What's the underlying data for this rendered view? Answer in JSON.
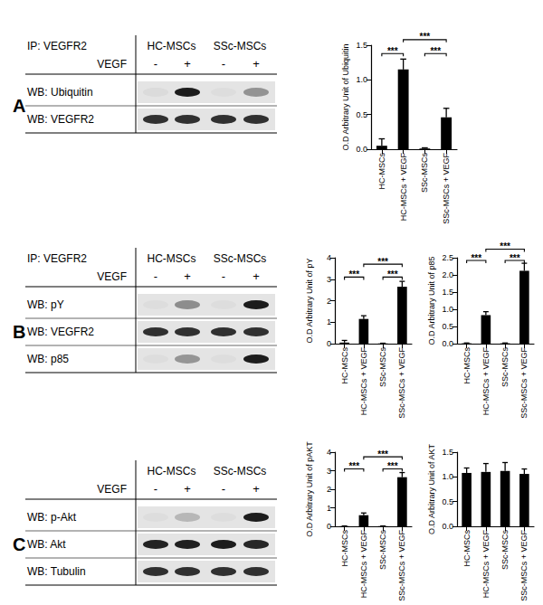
{
  "panels": [
    {
      "letter": "A",
      "ip": "IP: VEGFR2",
      "groups": [
        "HC-MSCs",
        "SSc-MSCs"
      ],
      "treatment": "VEGF",
      "lanes": [
        "-",
        "+",
        "-",
        "+"
      ],
      "rows": [
        "WB: Ubiquitin",
        "WB: VEGFR2"
      ]
    },
    {
      "letter": "B",
      "ip": "IP: VEGFR2",
      "groups": [
        "HC-MSCs",
        "SSc-MSCs"
      ],
      "treatment": "VEGF",
      "lanes": [
        "-",
        "+",
        "-",
        "+"
      ],
      "rows": [
        "WB: pY",
        "WB: VEGFR2",
        "WB: p85"
      ]
    },
    {
      "letter": "C",
      "groups": [
        "HC-MSCs",
        "SSc-MSCs"
      ],
      "treatment": "VEGF",
      "lanes": [
        "-",
        "+",
        "-",
        "+"
      ],
      "rows": [
        "WB: p-Akt",
        "WB: Akt",
        "WB: Tubulin"
      ]
    }
  ],
  "chart_data": [
    {
      "type": "bar",
      "ylabel": "O.D Arbitrary Unit of Ubiquitin",
      "color": "#000000",
      "categories": [
        "HC-MSCs",
        "HC-MSCs + VEGF",
        "SSc-MSCs",
        "SSc-MSCs + VEGF"
      ],
      "values": [
        0.05,
        1.15,
        0.01,
        0.46
      ],
      "errors": [
        0.1,
        0.15,
        0.01,
        0.13
      ],
      "ylim": [
        0,
        1.5
      ],
      "yticks": [
        {
          "value": 0,
          "label": "0.0"
        },
        {
          "value": 0.5,
          "label": "0.5"
        },
        {
          "value": 1,
          "label": "1.0"
        },
        {
          "value": 1.5,
          "label": "1.5"
        }
      ],
      "grid": false,
      "significance": [
        {
          "from": 0,
          "to": 1,
          "y": 1.38,
          "label": "***"
        },
        {
          "from": 2,
          "to": 3,
          "y": 1.38,
          "label": "***"
        },
        {
          "from": 1,
          "to": 3,
          "y": 1.58,
          "label": "***"
        }
      ]
    },
    {
      "type": "bar",
      "ylabel": "O.D Arbitrary Unit of pY",
      "color": "#000000",
      "categories": [
        "HC-MSCs",
        "HC-MSCs + VEGF",
        "SSc-MSCs",
        "SSc-MSCs + VEGF"
      ],
      "values": [
        0.05,
        1.15,
        0.01,
        2.65
      ],
      "errors": [
        0.1,
        0.15,
        0.01,
        0.25
      ],
      "ylim": [
        0,
        4
      ],
      "yticks": [
        0,
        1,
        2,
        3,
        4
      ],
      "grid": false,
      "significance": [
        {
          "from": 0,
          "to": 1,
          "y": 3.1,
          "label": "***"
        },
        {
          "from": 2,
          "to": 3,
          "y": 3.1,
          "label": "***"
        },
        {
          "from": 1,
          "to": 3,
          "y": 3.7,
          "label": "***"
        }
      ]
    },
    {
      "type": "bar",
      "ylabel": "O.D Arbitrary Unit of p85",
      "color": "#000000",
      "categories": [
        "HC-MSCs",
        "HC-MSCs + VEGF",
        "SSc-MSCs",
        "SSc-MSCs + VEGF"
      ],
      "values": [
        0.01,
        0.83,
        0.01,
        2.12
      ],
      "errors": [
        0.01,
        0.1,
        0.01,
        0.22
      ],
      "ylim": [
        0,
        2.5
      ],
      "yticks": [
        {
          "value": 0,
          "label": "0.0"
        },
        {
          "value": 0.5,
          "label": "0.5"
        },
        {
          "value": 1,
          "label": "1.0"
        },
        {
          "value": 1.5,
          "label": "1.5"
        },
        {
          "value": 2,
          "label": "2.0"
        },
        {
          "value": 2.5,
          "label": "2.5"
        }
      ],
      "grid": false,
      "significance": [
        {
          "from": 0,
          "to": 1,
          "y": 2.42,
          "label": "***"
        },
        {
          "from": 2,
          "to": 3,
          "y": 2.42,
          "label": "***"
        },
        {
          "from": 1,
          "to": 3,
          "y": 2.75,
          "label": "***"
        }
      ]
    },
    {
      "type": "bar",
      "ylabel": "O.D Arbitrary Unit of pAKT",
      "color": "#000000",
      "categories": [
        "HC-MSCs",
        "HC-MSCs + VEGF",
        "SSc-MSCs",
        "SSc-MSCs + VEGF"
      ],
      "values": [
        0.01,
        0.6,
        0.01,
        2.65
      ],
      "errors": [
        0.01,
        0.12,
        0.01,
        0.25
      ],
      "ylim": [
        0,
        4
      ],
      "yticks": [
        0,
        1,
        2,
        3,
        4
      ],
      "grid": false,
      "significance": [
        {
          "from": 0,
          "to": 1,
          "y": 3.1,
          "label": "***"
        },
        {
          "from": 2,
          "to": 3,
          "y": 3.1,
          "label": "***"
        },
        {
          "from": 1,
          "to": 3,
          "y": 3.75,
          "label": "***"
        }
      ]
    },
    {
      "type": "bar",
      "ylabel": "O.D Arbitrary Unit of AKT",
      "color": "#000000",
      "categories": [
        "HC-MSCs",
        "HC-MSCs + VEGF",
        "SSc-MSCs",
        "SSc-MSCs + VEGF"
      ],
      "values": [
        1.08,
        1.1,
        1.12,
        1.06
      ],
      "errors": [
        0.1,
        0.17,
        0.17,
        0.1
      ],
      "ylim": [
        0,
        1.5
      ],
      "yticks": [
        {
          "value": 0,
          "label": "0.0"
        },
        {
          "value": 0.5,
          "label": "0.5"
        },
        {
          "value": 1,
          "label": "1.0"
        },
        {
          "value": 1.5,
          "label": "1.5"
        }
      ],
      "grid": false,
      "significance": []
    }
  ]
}
